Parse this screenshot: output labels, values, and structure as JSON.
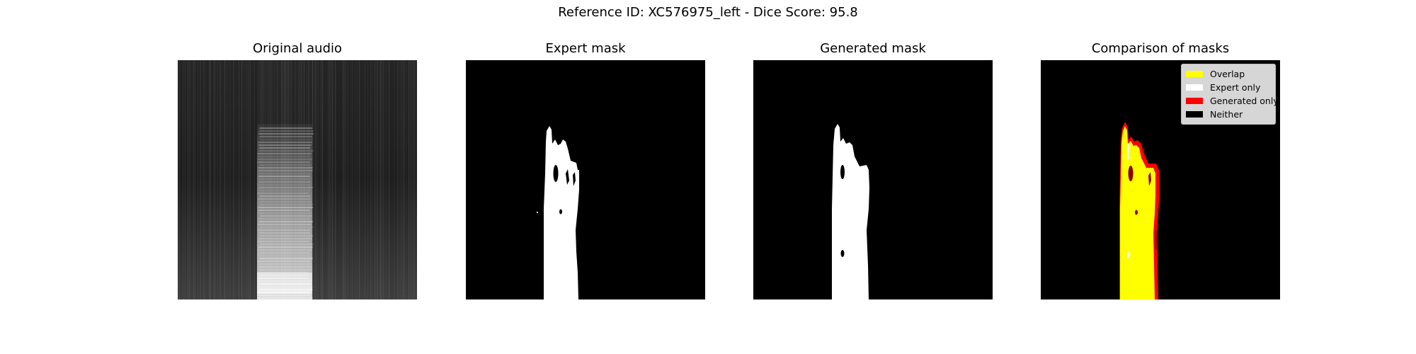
{
  "figure": {
    "title": "Reference ID: XC576975_left - Dice Score: 95.8"
  },
  "panels": [
    {
      "id": "original",
      "title": "Original audio"
    },
    {
      "id": "expert",
      "title": "Expert mask"
    },
    {
      "id": "generated",
      "title": "Generated mask"
    },
    {
      "id": "comparison",
      "title": "Comparison of masks"
    }
  ],
  "legend": {
    "items": [
      {
        "label": "Overlap",
        "color": "#ffff00"
      },
      {
        "label": "Expert only",
        "color": "#ffffff"
      },
      {
        "label": "Generated only",
        "color": "#ff0000"
      },
      {
        "label": "Neither",
        "color": "#000000"
      }
    ]
  }
}
